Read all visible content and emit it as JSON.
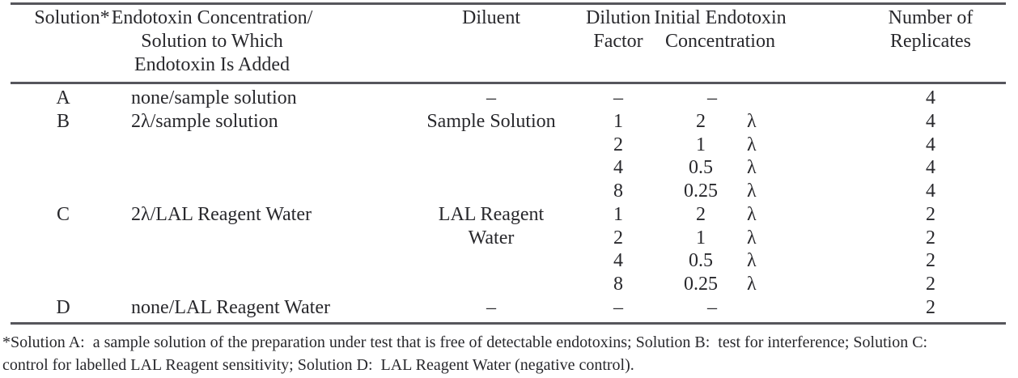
{
  "table": {
    "headers": [
      {
        "lines": [
          "Solution*"
        ]
      },
      {
        "lines": [
          "Endotoxin Concentration/",
          "Solution to Which",
          "Endotoxin Is Added"
        ]
      },
      {
        "lines": [
          "Diluent"
        ]
      },
      {
        "lines": [
          "Dilution",
          "Factor"
        ]
      },
      {
        "lines": [
          "Initial Endotoxin",
          "Concentration"
        ]
      },
      {
        "lines": [
          "Number of",
          "Replicates"
        ]
      }
    ],
    "rows": [
      {
        "solution": "A",
        "concentration": "none/sample solution",
        "diluent": "–",
        "dilution": "–",
        "initial": {
          "dash": "–"
        },
        "replicates": "4"
      },
      {
        "solution": "B",
        "concentration": "2λ/sample solution",
        "diluent": "Sample Solution",
        "dilution": "1",
        "initial": {
          "num": "2",
          "lambda": "λ"
        },
        "replicates": "4"
      },
      {
        "dilution": "2",
        "initial": {
          "num": "1",
          "lambda": "λ"
        },
        "replicates": "4"
      },
      {
        "dilution": "4",
        "initial": {
          "num": "0.5",
          "lambda": "λ"
        },
        "replicates": "4"
      },
      {
        "dilution": "8",
        "initial": {
          "num": "0.25",
          "lambda": "λ"
        },
        "replicates": "4"
      },
      {
        "solution": "C",
        "concentration": "2λ/LAL Reagent Water",
        "diluent": "LAL Reagent",
        "dilution": "1",
        "initial": {
          "num": "2",
          "lambda": "λ"
        },
        "replicates": "2"
      },
      {
        "diluent": "Water",
        "dilution": "2",
        "initial": {
          "num": "1",
          "lambda": "λ"
        },
        "replicates": "2"
      },
      {
        "dilution": "4",
        "initial": {
          "num": "0.5",
          "lambda": "λ"
        },
        "replicates": "2"
      },
      {
        "dilution": "8",
        "initial": {
          "num": "0.25",
          "lambda": "λ"
        },
        "replicates": "2"
      },
      {
        "solution": "D",
        "concentration": "none/LAL Reagent Water",
        "diluent": "–",
        "dilution": "–",
        "initial": {
          "dash": "–"
        },
        "replicates": "2"
      }
    ]
  },
  "footnote": {
    "lines": [
      "*Solution A:  a sample solution of the preparation under test that is free of detectable endotoxins; Solution B:  test for interference; Solution C:",
      "control for labelled LAL Reagent sensitivity; Solution D:  LAL Reagent Water (negative control)."
    ]
  },
  "colors": {
    "background": "#ffffff",
    "text": "#28282c",
    "rule": "#56565c"
  }
}
